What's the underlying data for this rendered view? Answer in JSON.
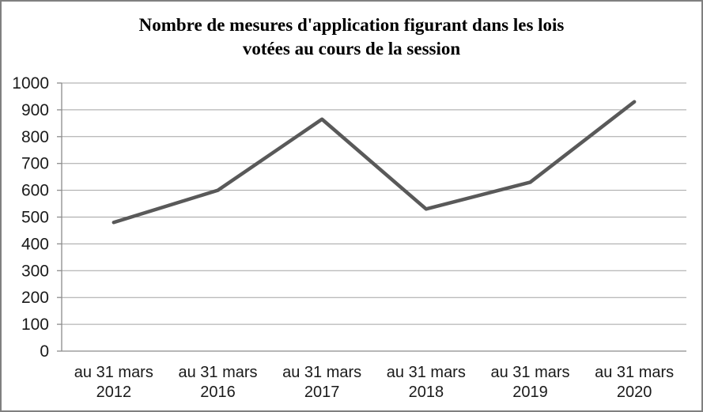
{
  "chart_data": {
    "type": "line",
    "title": "Nombre de mesures d'application figurant dans les lois votées au cours de la session",
    "title_lines": [
      "Nombre de mesures d'application figurant dans les lois",
      "votées au cours de la session"
    ],
    "categories": [
      "au 31 mars 2012",
      "au 31 mars 2016",
      "au 31 mars 2017",
      "au 31 mars 2018",
      "au 31 mars 2019",
      "au 31 mars 2020"
    ],
    "values": [
      480,
      600,
      865,
      530,
      630,
      930
    ],
    "ylim": [
      0,
      1000
    ],
    "yticks": [
      0,
      100,
      200,
      300,
      400,
      500,
      600,
      700,
      800,
      900,
      1000
    ],
    "grid": true,
    "legend": false,
    "colors": {
      "line": "#595959",
      "grid": "#a3a3a3",
      "axis": "#8c8c8c",
      "text": "#1a1a1a",
      "frame_border": "#808080",
      "background": "#ffffff"
    }
  }
}
